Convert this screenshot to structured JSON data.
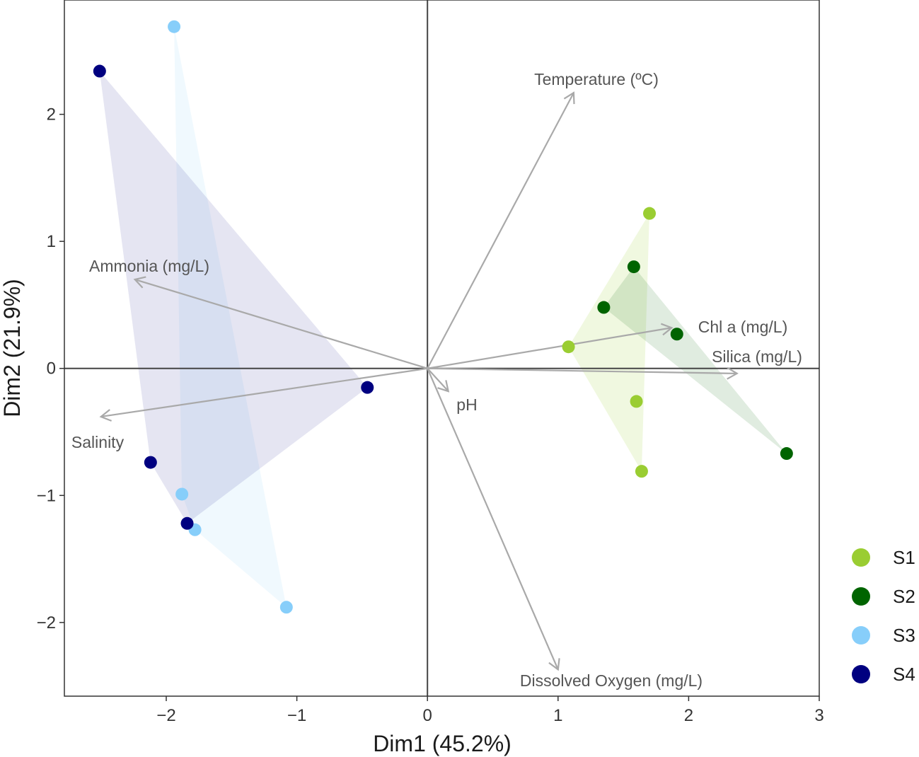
{
  "chart_data": {
    "type": "scatter",
    "title": "",
    "xlabel": "Dim1 (45.2%)",
    "ylabel": "Dim2 (21.9%)",
    "xlim": [
      -2.78,
      3.0
    ],
    "ylim": [
      -2.58,
      2.9
    ],
    "xticks": [
      -2,
      -1,
      0,
      1,
      2,
      3
    ],
    "yticks": [
      -2,
      -1,
      0,
      1,
      2
    ],
    "xtick_labels": [
      "−2",
      "−1",
      "0",
      "1",
      "2",
      "3"
    ],
    "ytick_labels": [
      "−2",
      "−1",
      "0",
      "1",
      "2"
    ],
    "grid": false,
    "legend_position": "right",
    "series": [
      {
        "name": "S1",
        "color": "#9ACD32",
        "points": [
          [
            1.7,
            1.22
          ],
          [
            1.08,
            0.17
          ],
          [
            1.6,
            -0.26
          ],
          [
            1.64,
            -0.81
          ]
        ]
      },
      {
        "name": "S2",
        "color": "#006400",
        "points": [
          [
            1.58,
            0.8
          ],
          [
            1.35,
            0.48
          ],
          [
            1.91,
            0.27
          ],
          [
            2.75,
            -0.67
          ]
        ]
      },
      {
        "name": "S3",
        "color": "#87CEFA",
        "points": [
          [
            -1.94,
            2.69
          ],
          [
            -1.88,
            -0.99
          ],
          [
            -1.78,
            -1.27
          ],
          [
            -1.08,
            -1.88
          ]
        ]
      },
      {
        "name": "S4",
        "color": "#000080",
        "points": [
          [
            -2.51,
            2.34
          ],
          [
            -2.12,
            -0.74
          ],
          [
            -1.84,
            -1.22
          ],
          [
            -0.46,
            -0.15
          ]
        ]
      }
    ],
    "hulls": [
      {
        "series": "S1",
        "color": "#9ACD32",
        "opacity": 0.15
      },
      {
        "series": "S2",
        "color": "#006400",
        "opacity": 0.12
      },
      {
        "series": "S3",
        "color": "#87CEFA",
        "opacity": 0.12
      },
      {
        "series": "S4",
        "color": "#000080",
        "opacity": 0.1
      }
    ],
    "loadings": [
      {
        "name": "Temperature (ºC)",
        "x": 1.12,
        "y": 2.17
      },
      {
        "name": "Ammonia (mg/L)",
        "x": -2.24,
        "y": 0.7
      },
      {
        "name": "Chl a (mg/L)",
        "x": 1.87,
        "y": 0.32
      },
      {
        "name": "Silica (mg/L)",
        "x": 2.37,
        "y": -0.04
      },
      {
        "name": "Salinity",
        "x": -2.5,
        "y": -0.38
      },
      {
        "name": "pH",
        "x": 0.16,
        "y": -0.18
      },
      {
        "name": "Dissolved Oxygen (mg/L)",
        "x": 1.0,
        "y": -2.37
      }
    ],
    "arrow_color": "#A9A9A9"
  }
}
